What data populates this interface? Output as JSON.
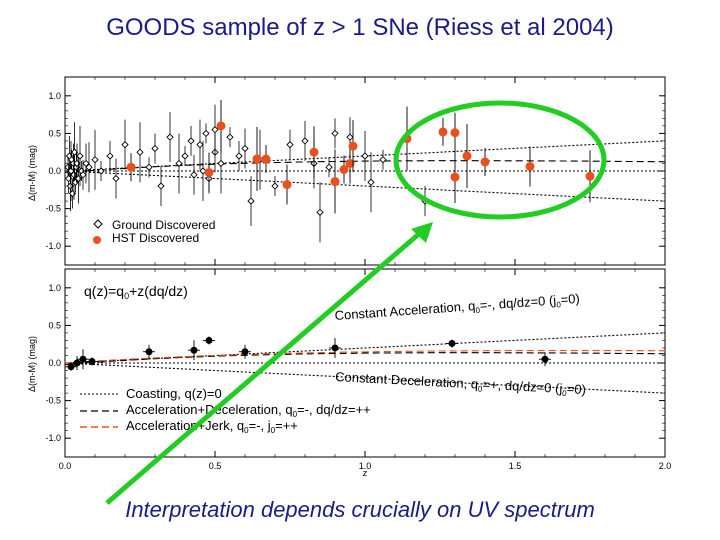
{
  "title": "GOODS sample of z > 1 SNe (Riess et al 2004)",
  "caption": "Interpretation depends crucially on UV spectrum",
  "colors": {
    "title": "#1a1a8c",
    "hst": "#e8501e",
    "highlight": "#22cc22",
    "jerk": "#e8501e"
  },
  "chart_data": [
    {
      "panel": "top",
      "type": "scatter",
      "ylabel": "Δ(m-M) (mag)",
      "xlim": [
        0.0,
        2.0
      ],
      "ylim": [
        -1.25,
        1.25
      ],
      "yticks": [
        "1.0",
        "0.5",
        "0.0",
        "-0.5",
        "-1.0"
      ],
      "legend": {
        "ground": "Ground Discovered",
        "hst": "HST Discovered"
      },
      "series": [
        {
          "name": "Ground Discovered",
          "marker": "open-diamond",
          "x": [
            0.01,
            0.012,
            0.015,
            0.018,
            0.02,
            0.022,
            0.025,
            0.028,
            0.03,
            0.032,
            0.035,
            0.038,
            0.04,
            0.045,
            0.05,
            0.055,
            0.06,
            0.07,
            0.08,
            0.1,
            0.12,
            0.15,
            0.17,
            0.2,
            0.25,
            0.28,
            0.3,
            0.32,
            0.35,
            0.38,
            0.4,
            0.42,
            0.43,
            0.45,
            0.46,
            0.47,
            0.48,
            0.5,
            0.5,
            0.52,
            0.55,
            0.58,
            0.6,
            0.62,
            0.65,
            0.7,
            0.75,
            0.8,
            0.83,
            0.85,
            0.88,
            0.9,
            0.95,
            1.0,
            1.02,
            1.06,
            1.2
          ],
          "y": [
            0.05,
            -0.1,
            0.2,
            -0.2,
            0.0,
            0.15,
            -0.3,
            0.1,
            -0.05,
            0.25,
            -0.15,
            0.05,
            0.1,
            -0.1,
            0.2,
            0.0,
            -0.05,
            0.1,
            0.05,
            0.15,
            0.0,
            0.2,
            -0.1,
            0.35,
            0.25,
            0.05,
            0.3,
            -0.2,
            0.45,
            0.1,
            0.2,
            0.4,
            -0.05,
            0.35,
            0.0,
            0.5,
            -0.1,
            0.25,
            0.55,
            0.1,
            0.45,
            0.2,
            0.3,
            -0.4,
            0.15,
            -0.2,
            0.35,
            0.4,
            0.1,
            -0.55,
            0.05,
            0.5,
            0.45,
            0.2,
            -0.15,
            0.15,
            -0.4
          ]
        },
        {
          "name": "HST Discovered",
          "marker": "filled-circle",
          "x": [
            0.22,
            0.48,
            0.52,
            0.64,
            0.67,
            0.74,
            0.83,
            0.9,
            0.93,
            0.95,
            0.96,
            1.14,
            1.26,
            1.3,
            1.3,
            1.34,
            1.4,
            1.55,
            1.75
          ],
          "y": [
            0.05,
            -0.02,
            0.6,
            0.16,
            0.16,
            -0.18,
            0.25,
            -0.14,
            0.02,
            0.1,
            0.33,
            0.43,
            0.52,
            0.51,
            -0.08,
            0.2,
            0.12,
            0.06,
            -0.07
          ]
        }
      ]
    },
    {
      "panel": "bottom",
      "type": "line",
      "ylabel": "Δ(m-M) (mag)",
      "xlabel": "z",
      "xlim": [
        0.0,
        2.0
      ],
      "ylim": [
        -1.25,
        1.25
      ],
      "xticks": [
        "0.0",
        "0.5",
        "1.0",
        "1.5",
        "2.0"
      ],
      "yticks": [
        "1.0",
        "0.5",
        "0.0",
        "-0.5",
        "-1.0"
      ],
      "eqn": "q(z)=q0+z(dq/dz)",
      "label_constant_acceleration": "Constant Acceleration, q0=-, dq/dz=0 (j0=0)",
      "label_constant_deceleration": "Constant Deceleration, q0=+, dq/dz=0 (j0=0)",
      "legend": [
        "Coasting, q(z)=0",
        "Acceleration+Deceleration, q0=-, dq/dz=++",
        "Acceleration+Jerk, q0=-, j0=++"
      ],
      "binned_points": {
        "x": [
          0.02,
          0.04,
          0.06,
          0.09,
          0.28,
          0.43,
          0.48,
          0.6,
          0.9,
          1.29,
          1.6
        ],
        "y": [
          -0.05,
          0.0,
          0.05,
          0.02,
          0.15,
          0.17,
          0.3,
          0.15,
          0.2,
          0.26,
          0.05
        ]
      }
    }
  ]
}
